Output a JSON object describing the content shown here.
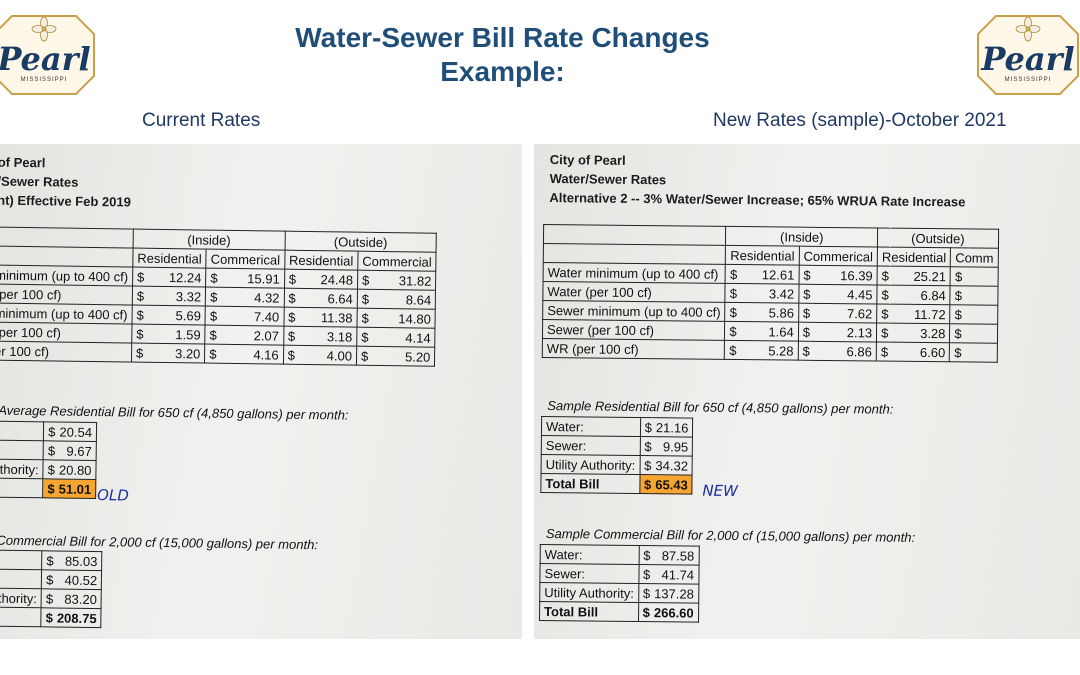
{
  "title": {
    "line1": "Water-Sewer Bill Rate Changes",
    "line2": "Example:"
  },
  "logo": {
    "word": "Pearl",
    "sub": "MISSISSIPPI"
  },
  "captions": {
    "left": "Current Rates",
    "right": "New Rates (sample)-October 2021"
  },
  "left_sheet": {
    "header": [
      "of Pearl",
      "/Sewer Rates",
      "nt) Effective Feb 2019"
    ],
    "group_inside": "(Inside)",
    "group_outside": "(Outside)",
    "columns": [
      "Residential",
      "Commerical",
      "Residential",
      "Commercial"
    ],
    "rows": [
      {
        "label": "minimum (up to 400 cf)",
        "values": [
          "12.24",
          "15.91",
          "24.48",
          "31.82"
        ]
      },
      {
        "label": "(per 100 cf)",
        "values": [
          "3.32",
          "4.32",
          "6.64",
          "8.64"
        ]
      },
      {
        "label": "minimum (up to 400 cf)",
        "values": [
          "5.69",
          "7.40",
          "11.38",
          "14.80"
        ]
      },
      {
        "label": "(per 100 cf)",
        "values": [
          "1.59",
          "2.07",
          "3.18",
          "4.14"
        ]
      },
      {
        "label": "er 100 cf)",
        "values": [
          "3.20",
          "4.16",
          "4.00",
          "5.20"
        ]
      }
    ],
    "res_title": "Average Residential Bill for 650 cf (4,850 gallons) per month:",
    "res_rows": [
      {
        "label": "",
        "value": "20.54"
      },
      {
        "label": "",
        "value": "9.67"
      },
      {
        "label": "uthority:",
        "value": "20.80"
      },
      {
        "label": "ll",
        "value": "51.01"
      }
    ],
    "res_mark": "OLD",
    "com_title": "Commercial Bill for 2,000 cf (15,000 gallons) per month:",
    "com_rows": [
      {
        "label": "",
        "value": "85.03"
      },
      {
        "label": "",
        "value": "40.52"
      },
      {
        "label": "uthority:",
        "value": "83.20"
      },
      {
        "label": "ll",
        "value": "208.75"
      }
    ]
  },
  "right_sheet": {
    "header": [
      "City of Pearl",
      "Water/Sewer Rates",
      "Alternative 2 -- 3% Water/Sewer Increase; 65% WRUA Rate Increase"
    ],
    "group_inside": "(Inside)",
    "group_outside": "(Outside)",
    "columns": [
      "Residential",
      "Commerical",
      "Residential",
      "Comm"
    ],
    "rows": [
      {
        "label": "Water minimum (up to 400 cf)",
        "values": [
          "12.61",
          "16.39",
          "25.21"
        ]
      },
      {
        "label": "Water (per 100 cf)",
        "values": [
          "3.42",
          "4.45",
          "6.84"
        ]
      },
      {
        "label": "Sewer minimum (up to 400 cf)",
        "values": [
          "5.86",
          "7.62",
          "11.72"
        ]
      },
      {
        "label": "Sewer (per 100 cf)",
        "values": [
          "1.64",
          "2.13",
          "3.28"
        ]
      },
      {
        "label": "WR (per 100 cf)",
        "values": [
          "5.28",
          "6.86",
          "6.60"
        ]
      }
    ],
    "res_title": "Sample Residential Bill for 650 cf (4,850 gallons) per month:",
    "res_rows": [
      {
        "label": "Water:",
        "value": "21.16"
      },
      {
        "label": "Sewer:",
        "value": "9.95"
      },
      {
        "label": "Utility Authority:",
        "value": "34.32"
      },
      {
        "label": "Total Bill",
        "value": "65.43"
      }
    ],
    "res_mark": "NEW",
    "com_title": "Sample Commercial Bill for 2,000 cf (15,000 gallons) per month:",
    "com_rows": [
      {
        "label": "Water:",
        "value": "87.58"
      },
      {
        "label": "Sewer:",
        "value": "41.74"
      },
      {
        "label": "Utility Authority:",
        "value": "137.28"
      },
      {
        "label": "Total Bill",
        "value": "266.60"
      }
    ]
  },
  "currency": "$",
  "colors": {
    "title": "#1f4e79",
    "highlight": "#f7a531",
    "pen": "#1a2fa0"
  }
}
